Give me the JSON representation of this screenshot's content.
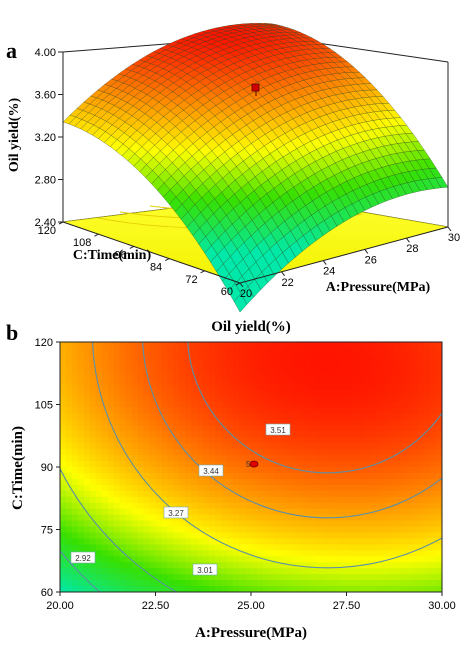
{
  "panel_labels": {
    "a": "a",
    "b": "b"
  },
  "colors": {
    "low": "#00e8a0",
    "mid_green": "#38e000",
    "mid_yellow": "#ffff00",
    "high": "#ff1400",
    "contour": "#5a8fa8"
  },
  "chart_data": [
    {
      "type": "surface3d",
      "panel": "a",
      "zlabel": "Oil yield(%)",
      "xlabel": "A:Pressure(MPa)",
      "ylabel": "C:Time(min)",
      "x_ticks": [
        "20",
        "22",
        "24",
        "26",
        "28",
        "30"
      ],
      "y_ticks": [
        "60",
        "72",
        "84",
        "96",
        "108",
        "120"
      ],
      "z_ticks": [
        "2.40",
        "2.80",
        "3.20",
        "3.60",
        "4.00"
      ],
      "xlim": [
        20,
        30
      ],
      "ylim": [
        60,
        120
      ],
      "zlim": [
        2.4,
        4.0
      ],
      "surface_corners": [
        {
          "x": 20,
          "y": 60,
          "z": 2.55
        },
        {
          "x": 30,
          "y": 60,
          "z": 2.95
        },
        {
          "x": 20,
          "y": 120,
          "z": 3.25
        },
        {
          "x": 30,
          "y": 120,
          "z": 3.6
        }
      ],
      "peak": {
        "x": 27,
        "y": 115,
        "z": 3.85
      },
      "design_point": {
        "x": 25,
        "y": 90,
        "z": 3.52
      }
    },
    {
      "type": "contour",
      "panel": "b",
      "title": "Oil yield(%)",
      "xlabel": "A:Pressure(MPa)",
      "ylabel": "C:Time(min)",
      "x_ticks": [
        "20.00",
        "22.50",
        "25.00",
        "27.50",
        "30.00"
      ],
      "y_ticks": [
        "60",
        "75",
        "90",
        "105",
        "120"
      ],
      "xlim": [
        20,
        30
      ],
      "ylim": [
        60,
        120
      ],
      "contour_levels": [
        "2.92",
        "3.01",
        "3.27",
        "3.44",
        "3.51"
      ],
      "design_point": {
        "x": 25,
        "y": 90,
        "label": "5"
      },
      "peak": {
        "x": 27,
        "y": 115
      }
    }
  ]
}
